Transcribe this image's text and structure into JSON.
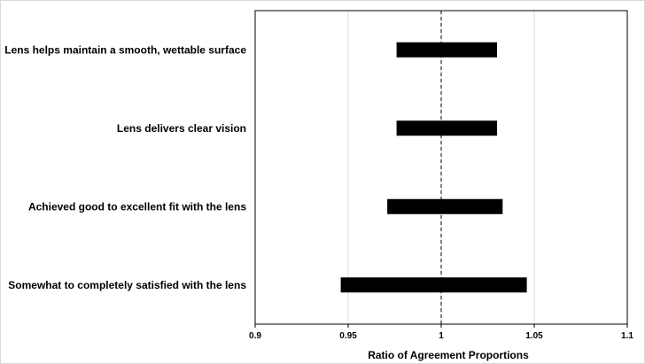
{
  "chart_data": {
    "type": "range-bar",
    "title": "",
    "xlabel": "Ratio of Agreement Proportions",
    "ylabel": "",
    "xlim": [
      0.9,
      1.1
    ],
    "xticks": [
      0.9,
      0.95,
      1,
      1.05,
      1.1
    ],
    "xtick_labels": [
      "0.9",
      "0.95",
      "1",
      "1.05",
      "1.1"
    ],
    "reference_line": 1,
    "reference_line_style": "dashed",
    "grid": "vertical",
    "legend": "none",
    "bar_color": "#000000",
    "categories": [
      "Lens helps maintain a smooth, wettable surface",
      "Lens delivers clear vision",
      "Achieved good to excellent fit with the lens",
      "Somewhat to completely satisfied with the lens"
    ],
    "intervals": [
      {
        "low": 0.976,
        "high": 1.03
      },
      {
        "low": 0.976,
        "high": 1.03
      },
      {
        "low": 0.971,
        "high": 1.033
      },
      {
        "low": 0.946,
        "high": 1.046
      }
    ]
  }
}
